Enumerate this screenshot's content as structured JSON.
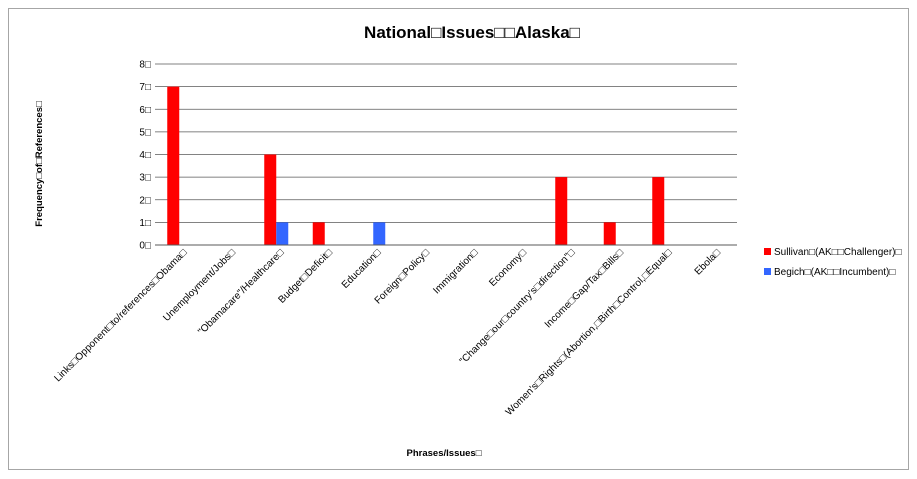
{
  "chart_data": {
    "type": "bar",
    "title": "National□Issues□□Alaska□",
    "xlabel": "Phrases/Issues□",
    "ylabel": "Frequency□of□References□",
    "ylim": [
      0,
      8
    ],
    "yticks": [
      "0□",
      "1□",
      "2□",
      "3□",
      "4□",
      "5□",
      "6□",
      "7□",
      "8□"
    ],
    "grid": true,
    "legend_position": "right",
    "categories": [
      "Links□Opponent□to/references□Obama□",
      "Unemployment/Jobs□",
      "\"Obamacare\"/Healthcare□",
      "Budget□Deficit□",
      "Education□",
      "Foreign□Policy□",
      "Immigration□",
      "Economy□",
      "\"Change□our□country's□direction\"□",
      "Income□Gap/Tax□Bills□",
      "Women's□Rights□(Abortion,□Birth□Control,□Equal□",
      "Ebola□"
    ],
    "series": [
      {
        "name": "Sullivan□(AK□□Challenger)□",
        "color": "#ff0000",
        "values": [
          7,
          0,
          4,
          1,
          0,
          0,
          0,
          0,
          3,
          1,
          3,
          0
        ]
      },
      {
        "name": "Begich□(AK□□Incumbent)□",
        "color": "#3366ff",
        "values": [
          0,
          0,
          1,
          0,
          1,
          0,
          0,
          0,
          0,
          0,
          0,
          0
        ]
      }
    ]
  }
}
